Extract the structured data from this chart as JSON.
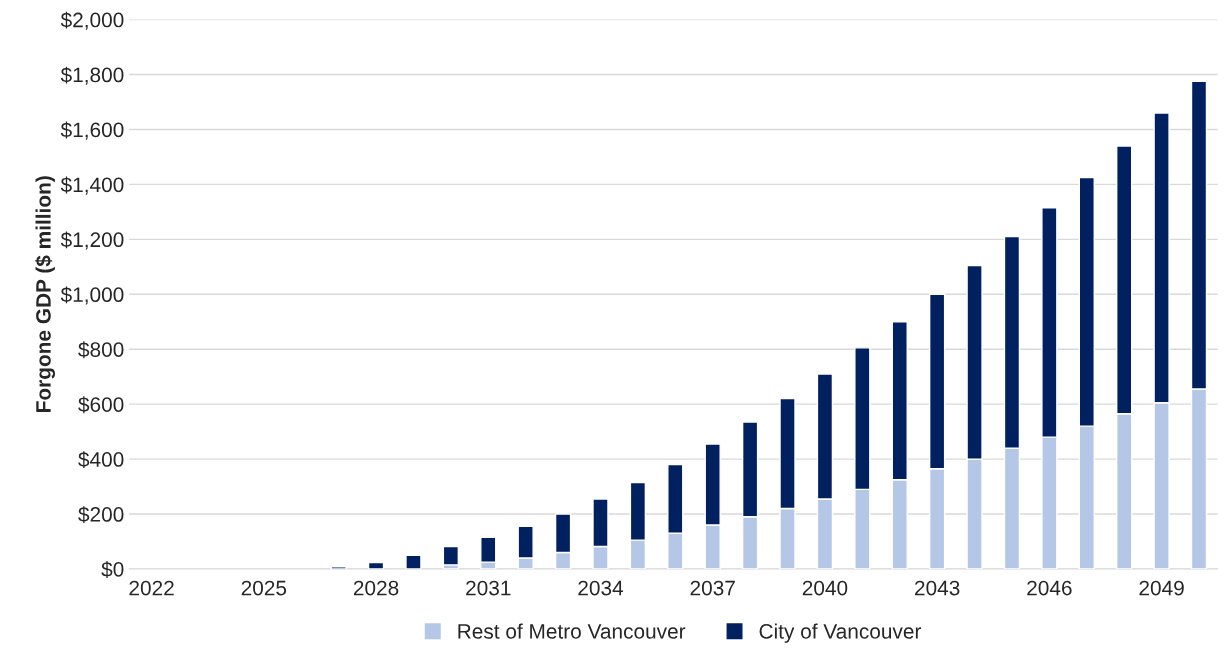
{
  "chart_data": {
    "type": "bar",
    "stacked": true,
    "ylabel": "Forgone GDP ($ million)",
    "categories": [
      "2022",
      null,
      null,
      "2025",
      null,
      null,
      "2028",
      null,
      null,
      "2031",
      null,
      null,
      "2034",
      null,
      null,
      "2037",
      null,
      null,
      "2040",
      null,
      null,
      "2043",
      null,
      null,
      "2046",
      null,
      null,
      "2049",
      null
    ],
    "series": [
      {
        "name": "Rest of Metro Vancouver",
        "color": "#b4c7e7",
        "values": [
          null,
          null,
          null,
          null,
          null,
          null,
          null,
          null,
          15,
          25,
          40,
          60,
          82,
          105,
          130,
          160,
          190,
          220,
          255,
          290,
          325,
          365,
          400,
          440,
          480,
          520,
          565,
          605,
          655
        ]
      },
      {
        "name": "City of Vancouver",
        "color": "#002060",
        "values": [
          null,
          null,
          null,
          null,
          null,
          8,
          23,
          50,
          67,
          90,
          115,
          140,
          173,
          210,
          250,
          295,
          345,
          400,
          455,
          515,
          575,
          635,
          705,
          770,
          835,
          905,
          975,
          1055,
          1120
        ]
      }
    ],
    "ylim": [
      0,
      2000
    ],
    "yticks": [
      {
        "value": 0,
        "label": "$0"
      },
      {
        "value": 200,
        "label": "$200"
      },
      {
        "value": 400,
        "label": "$400"
      },
      {
        "value": 600,
        "label": "$600"
      },
      {
        "value": 800,
        "label": "$800"
      },
      {
        "value": 1000,
        "label": "$1,000"
      },
      {
        "value": 1200,
        "label": "$1,200"
      },
      {
        "value": 1400,
        "label": "$1,400"
      },
      {
        "value": 1600,
        "label": "$1,600"
      },
      {
        "value": 1800,
        "label": "$1,800"
      },
      {
        "value": 2000,
        "label": "$2,000"
      }
    ],
    "grid": "y",
    "legend": "bottom"
  }
}
